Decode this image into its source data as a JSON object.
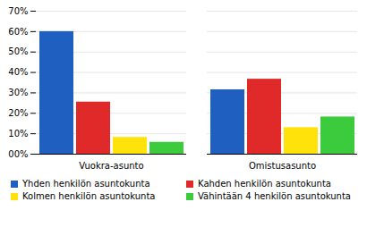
{
  "chart_data": {
    "type": "bar",
    "categories": [
      "Vuokra-asunto",
      "Omistusasunto"
    ],
    "series": [
      {
        "name": "Yhden henkilön asuntokunta",
        "color": "#1f5fbf",
        "values": [
          60,
          31.5
        ]
      },
      {
        "name": "Kahden henkilön asuntokunta",
        "color": "#e02a2a",
        "values": [
          25.5,
          36.7
        ]
      },
      {
        "name": "Kolmen henkilön asuntokunta",
        "color": "#ffe20a",
        "values": [
          8.2,
          13
        ]
      },
      {
        "name": "Vähintään 4 henkilön asuntokunta",
        "color": "#3ccb3c",
        "values": [
          5.8,
          18.2
        ]
      }
    ],
    "ylim": [
      0,
      70
    ],
    "yticks": [
      {
        "value": 0,
        "label": "00%"
      },
      {
        "value": 10,
        "label": "10%"
      },
      {
        "value": 20,
        "label": "20%"
      },
      {
        "value": 30,
        "label": "30%"
      },
      {
        "value": 40,
        "label": "40%"
      },
      {
        "value": 50,
        "label": "50%"
      },
      {
        "value": 60,
        "label": "60%"
      },
      {
        "value": 70,
        "label": "70%"
      }
    ],
    "grid": true,
    "legend": "bottom"
  }
}
